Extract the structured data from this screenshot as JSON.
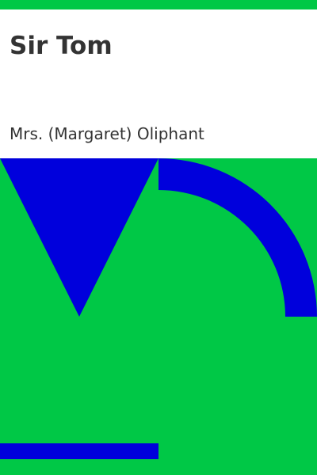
{
  "cover": {
    "title": "Sir Tom",
    "author": "Mrs. (Margaret) Oliphant"
  },
  "colors": {
    "background": "#00c846",
    "panel": "#ffffff",
    "shapes": "#0000dc",
    "text": "#333333"
  }
}
